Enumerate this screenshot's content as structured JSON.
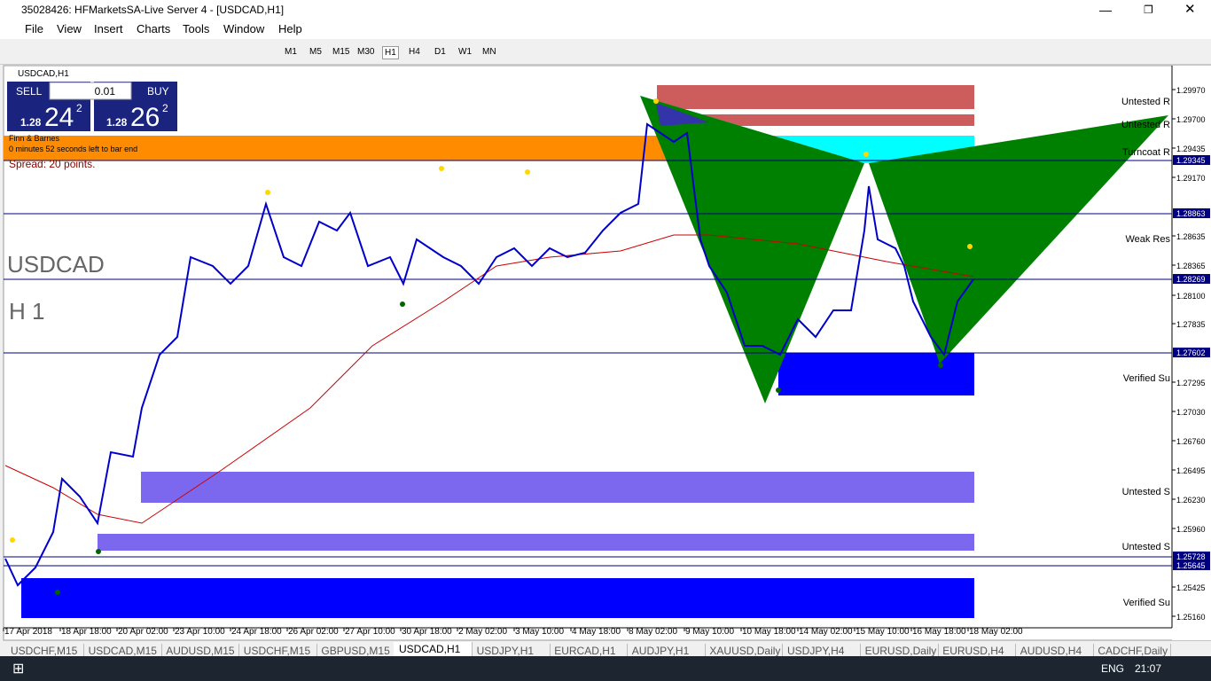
{
  "window": {
    "title": "35028426: HFMarketsSA-Live Server 4 - [USDCAD,H1]"
  },
  "menu": [
    "File",
    "View",
    "Insert",
    "Charts",
    "Tools",
    "Window",
    "Help"
  ],
  "timeframes": [
    "M1",
    "M5",
    "M15",
    "M30",
    "H1",
    "H4",
    "D1",
    "W1",
    "MN"
  ],
  "chart": {
    "label": "USDCAD,H1",
    "trade_panel": {
      "sell": "SELL",
      "buy": "BUY",
      "lot": "0.01",
      "sell_price": {
        "big": "1.28",
        "pips": "24",
        "point": "2"
      },
      "buy_price": {
        "big": "1.28",
        "pips": "26",
        "point": "2"
      }
    },
    "info": [
      "Finn & Barnes",
      "0 minutes 52 seconds left to bar end"
    ],
    "spread": "Spread: 20 points.",
    "symbol": "USDCAD",
    "period": "H 1",
    "zone_labels": [
      "Untested R",
      "Untested R",
      "Turncoat R",
      "Weak Res",
      "Verified Su",
      "Untested S",
      "Untested S",
      "Verified Su"
    ],
    "price_axis": [
      "1.29970",
      "1.29700",
      "1.29435",
      "1.29170",
      "1.28635",
      "1.28365",
      "1.28100",
      "1.27835",
      "1.27295",
      "1.27030",
      "1.26760",
      "1.26495",
      "1.26230",
      "1.25960",
      "1.25425",
      "1.25160"
    ],
    "price_markers": [
      "1.29345",
      "1.28863",
      "1.28269",
      "1.27602",
      "1.25728",
      "1.25645"
    ],
    "time_axis": [
      "17 Apr 2018",
      "18 Apr 18:00",
      "20 Apr 02:00",
      "23 Apr 10:00",
      "24 Apr 18:00",
      "26 Apr 02:00",
      "27 Apr 10:00",
      "30 Apr 18:00",
      "2 May 02:00",
      "3 May 10:00",
      "4 May 18:00",
      "8 May 02:00",
      "9 May 10:00",
      "10 May 18:00",
      "14 May 02:00",
      "15 May 10:00",
      "16 May 18:00",
      "18 May 02:00"
    ]
  },
  "tabs": [
    "USDCHF,M15",
    "USDCAD,M15",
    "AUDUSD,M15",
    "USDCHF,M15",
    "GBPUSD,M15",
    "USDCAD,H1",
    "USDJPY,H1",
    "EURCAD,H1",
    "AUDJPY,H1",
    "XAUUSD,Daily",
    "USDJPY,H4",
    "EURUSD,Daily",
    "EURUSD,H4",
    "AUDUSD,H4",
    "CADCHF,Daily"
  ],
  "taskbar": {
    "language": "ENG",
    "time": "21:07"
  }
}
